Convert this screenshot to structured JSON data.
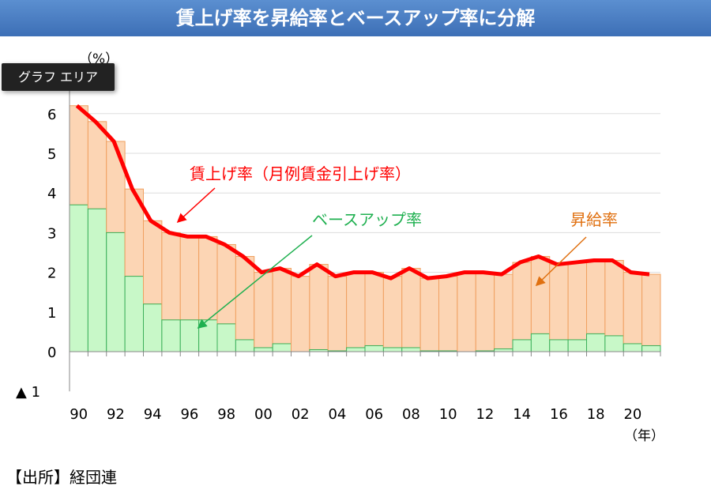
{
  "title": "賃上げ率を昇給率とベースアップ率に分解",
  "tooltip": "グラフ エリア",
  "source": "【出所】経団連",
  "chart_data": {
    "type": "bar",
    "stacked": true,
    "ylabel": "（%）",
    "xlabel": "（年）",
    "ylim": [
      -1,
      7
    ],
    "yticks": [
      {
        "v": 6,
        "t": "6"
      },
      {
        "v": 5,
        "t": "5"
      },
      {
        "v": 4,
        "t": "4"
      },
      {
        "v": 3,
        "t": "3"
      },
      {
        "v": 2,
        "t": "2"
      },
      {
        "v": 1,
        "t": "1"
      },
      {
        "v": 0,
        "t": "0"
      },
      {
        "v": -1,
        "t": "▲ 1"
      }
    ],
    "xticklabels": [
      "90",
      "92",
      "94",
      "96",
      "98",
      "00",
      "02",
      "04",
      "06",
      "08",
      "10",
      "12",
      "14",
      "16",
      "18",
      "20"
    ],
    "years": [
      1990,
      1991,
      1992,
      1993,
      1994,
      1995,
      1996,
      1997,
      1998,
      1999,
      2000,
      2001,
      2002,
      2003,
      2004,
      2005,
      2006,
      2007,
      2008,
      2009,
      2010,
      2011,
      2012,
      2013,
      2014,
      2015,
      2016,
      2017,
      2018,
      2019,
      2020,
      2021
    ],
    "series": [
      {
        "name": "ベースアップ率",
        "color": "#c8f8c8",
        "edge": "#3cb05a",
        "values": [
          3.7,
          3.6,
          3.0,
          1.9,
          1.2,
          0.8,
          0.8,
          0.8,
          0.7,
          0.3,
          0.1,
          0.2,
          0.0,
          0.05,
          0.02,
          0.1,
          0.15,
          0.1,
          0.1,
          0.02,
          0.02,
          0.0,
          0.02,
          0.07,
          0.3,
          0.45,
          0.3,
          0.3,
          0.45,
          0.4,
          0.2,
          0.15
        ]
      },
      {
        "name": "昇給率",
        "color": "#fcd5b4",
        "edge": "#f0a060",
        "values": [
          2.5,
          2.2,
          2.3,
          2.2,
          2.1,
          2.2,
          2.1,
          2.1,
          2.0,
          2.1,
          1.9,
          1.9,
          1.9,
          2.15,
          1.88,
          1.9,
          1.85,
          1.8,
          2.0,
          1.83,
          1.88,
          2.0,
          1.98,
          1.88,
          1.95,
          1.95,
          1.9,
          1.95,
          1.85,
          1.9,
          1.8,
          1.8
        ]
      },
      {
        "name": "賃上げ率（月例賃金引上げ率）",
        "color": "#ff0000",
        "type": "line",
        "values": [
          6.2,
          5.8,
          5.3,
          4.1,
          3.3,
          3.0,
          2.9,
          2.9,
          2.7,
          2.4,
          2.0,
          2.1,
          1.9,
          2.2,
          1.9,
          2.0,
          2.0,
          1.85,
          2.1,
          1.85,
          1.9,
          2.0,
          2.0,
          1.95,
          2.25,
          2.4,
          2.2,
          2.25,
          2.3,
          2.3,
          2.0,
          1.95
        ]
      }
    ],
    "annotations": {
      "line": "賃上げ率（月例賃金引上げ率）",
      "base": "ベースアップ率",
      "raise": "昇給率"
    }
  }
}
